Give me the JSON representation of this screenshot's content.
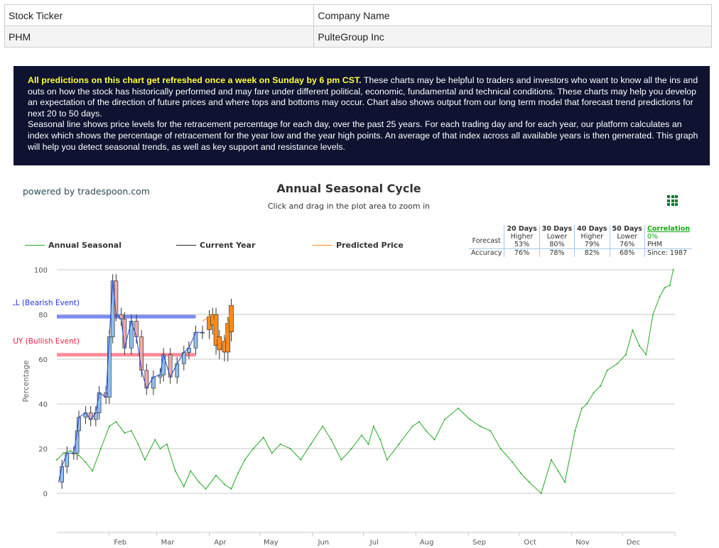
{
  "ticker_table": {
    "headers": [
      "Stock Ticker",
      "Company Name"
    ],
    "row": [
      "PHM",
      "PulteGroup Inc"
    ]
  },
  "info": {
    "highlight": "All predictions on this chart get refreshed once a week on Sunday by 6 pm CST.",
    "text1": " These charts may be helpful to traders and investors who want to know all the ins and outs on how the stock has historically performed and may fare under different political, economic, fundamental and technical conditions. These charts may help you develop an expectation of the direction of future prices and where tops and bottoms may occur. Chart also shows output from our long term model that forecast trend predictions for next 20 to 50 days.",
    "text2": "Seasonal line shows price levels for the retracement percentage for each day, over the past 25 years. For each trading day and for each year, our platform calculates an index which shows the percentage of retracement for the year low and the year high points. An average of that index across all available years is then generated. This graph will help you detect seasonal trends, as well as key support and resistance levels."
  },
  "powered_by": "powered by tradespoon.com",
  "menu_icon": "grid-menu-icon",
  "forecast": {
    "periods": [
      "20 Days",
      "30 Days",
      "40 Days",
      "50 Days"
    ],
    "forecast_label": "Forecast",
    "accuracy_label": "Accuracy",
    "direction": [
      "Higher",
      "Lower",
      "Higher",
      "Lower"
    ],
    "probability": [
      "53%",
      "80%",
      "79%",
      "76%"
    ],
    "accuracy": [
      "76%",
      "78%",
      "82%",
      "68%"
    ],
    "correlation_label": "Correlation",
    "correlation_value": "0%",
    "symbol": "PHM",
    "since": "Since: 1987"
  },
  "chart_data": {
    "type": "line",
    "title": "Annual Seasonal Cycle",
    "subtitle": "Click and drag in the plot area to zoom in",
    "ylabel": "Percentage",
    "ylim": [
      0,
      100
    ],
    "yticks": [
      0,
      20,
      40,
      60,
      80,
      100
    ],
    "xticks": [
      "Feb",
      "Mar",
      "Apr",
      "May",
      "Jun",
      "Jul",
      "Aug",
      "Sep",
      "Oct",
      "Nov",
      "Dec"
    ],
    "grid": true,
    "legend_placement": "top-left",
    "colors": {
      "seasonal": "#22aa22",
      "current": "#2244cc",
      "predicted": "#ff8c1a",
      "sell": "#6677ee",
      "buy": "#ff7788",
      "candle_up": "#8ec0ee",
      "candle_down": "#f2aaaa"
    },
    "series": [
      {
        "name": "Annual Seasonal",
        "points": [
          [
            "01-01",
            15
          ],
          [
            "01-05",
            18
          ],
          [
            "01-09",
            19
          ],
          [
            "01-14",
            17
          ],
          [
            "01-18",
            14
          ],
          [
            "01-22",
            10
          ],
          [
            "01-27",
            20
          ],
          [
            "02-01",
            30
          ],
          [
            "02-05",
            32
          ],
          [
            "02-10",
            27
          ],
          [
            "02-14",
            28
          ],
          [
            "02-18",
            22
          ],
          [
            "02-22",
            15
          ],
          [
            "02-28",
            24
          ],
          [
            "03-03",
            20
          ],
          [
            "03-07",
            22
          ],
          [
            "03-12",
            10
          ],
          [
            "03-17",
            3
          ],
          [
            "03-21",
            10
          ],
          [
            "03-26",
            5
          ],
          [
            "03-30",
            2
          ],
          [
            "04-05",
            8
          ],
          [
            "04-10",
            4
          ],
          [
            "04-14",
            2
          ],
          [
            "04-18",
            9
          ],
          [
            "04-22",
            15
          ],
          [
            "04-27",
            20
          ],
          [
            "05-03",
            25
          ],
          [
            "05-08",
            18
          ],
          [
            "05-13",
            22
          ],
          [
            "05-19",
            20
          ],
          [
            "05-25",
            15
          ],
          [
            "05-31",
            22
          ],
          [
            "06-07",
            30
          ],
          [
            "06-12",
            24
          ],
          [
            "06-18",
            15
          ],
          [
            "06-24",
            20
          ],
          [
            "06-30",
            26
          ],
          [
            "07-04",
            22
          ],
          [
            "07-07",
            30
          ],
          [
            "07-11",
            24
          ],
          [
            "07-15",
            15
          ],
          [
            "07-22",
            22
          ],
          [
            "07-30",
            30
          ],
          [
            "08-03",
            32
          ],
          [
            "08-07",
            28
          ],
          [
            "08-12",
            24
          ],
          [
            "08-18",
            33
          ],
          [
            "08-26",
            38
          ],
          [
            "09-02",
            33
          ],
          [
            "09-08",
            30
          ],
          [
            "09-14",
            28
          ],
          [
            "09-20",
            20
          ],
          [
            "09-27",
            14
          ],
          [
            "10-02",
            9
          ],
          [
            "10-07",
            5
          ],
          [
            "10-14",
            0
          ],
          [
            "10-20",
            15
          ],
          [
            "10-24",
            10
          ],
          [
            "10-28",
            5
          ],
          [
            "11-03",
            28
          ],
          [
            "11-07",
            38
          ],
          [
            "11-10",
            40
          ],
          [
            "11-14",
            45
          ],
          [
            "11-18",
            48
          ],
          [
            "11-22",
            55
          ],
          [
            "11-28",
            58
          ],
          [
            "12-03",
            62
          ],
          [
            "12-07",
            73
          ],
          [
            "12-11",
            66
          ],
          [
            "12-15",
            62
          ],
          [
            "12-19",
            80
          ],
          [
            "12-23",
            88
          ],
          [
            "12-26",
            92
          ],
          [
            "12-29",
            93
          ],
          [
            "12-31",
            100
          ]
        ]
      },
      {
        "name": "Current Year",
        "points": [
          [
            "01-02",
            5
          ],
          [
            "01-04",
            12
          ],
          [
            "01-07",
            18
          ],
          [
            "01-11",
            18
          ],
          [
            "01-13",
            28
          ],
          [
            "01-14",
            34
          ],
          [
            "01-18",
            36
          ],
          [
            "01-21",
            33
          ],
          [
            "01-24",
            36
          ],
          [
            "01-26",
            45
          ],
          [
            "01-30",
            43
          ],
          [
            "02-01",
            70
          ],
          [
            "02-03",
            95
          ],
          [
            "02-05",
            80
          ],
          [
            "02-08",
            78
          ],
          [
            "02-10",
            65
          ],
          [
            "02-14",
            77
          ],
          [
            "02-17",
            70
          ],
          [
            "02-20",
            55
          ],
          [
            "02-23",
            47
          ],
          [
            "02-27",
            52
          ],
          [
            "03-03",
            53
          ],
          [
            "03-05",
            62
          ],
          [
            "03-09",
            52
          ],
          [
            "03-13",
            58
          ],
          [
            "03-17",
            63
          ],
          [
            "03-20",
            65
          ],
          [
            "03-24",
            72
          ],
          [
            "03-28",
            72
          ]
        ]
      },
      {
        "name": "Predicted Price",
        "points": [
          [
            "03-28",
            77
          ],
          [
            "04-01",
            79
          ],
          [
            "04-03",
            80
          ],
          [
            "04-05",
            70
          ],
          [
            "04-07",
            68
          ],
          [
            "04-10",
            67
          ],
          [
            "04-12",
            76
          ],
          [
            "04-14",
            84
          ]
        ]
      }
    ],
    "levels": [
      {
        "label": "SELL (Bearish Event)",
        "value": 79,
        "end": "03-24"
      },
      {
        "label": "BUY (Bullish Event)",
        "value": 62,
        "end": "03-24"
      }
    ]
  }
}
